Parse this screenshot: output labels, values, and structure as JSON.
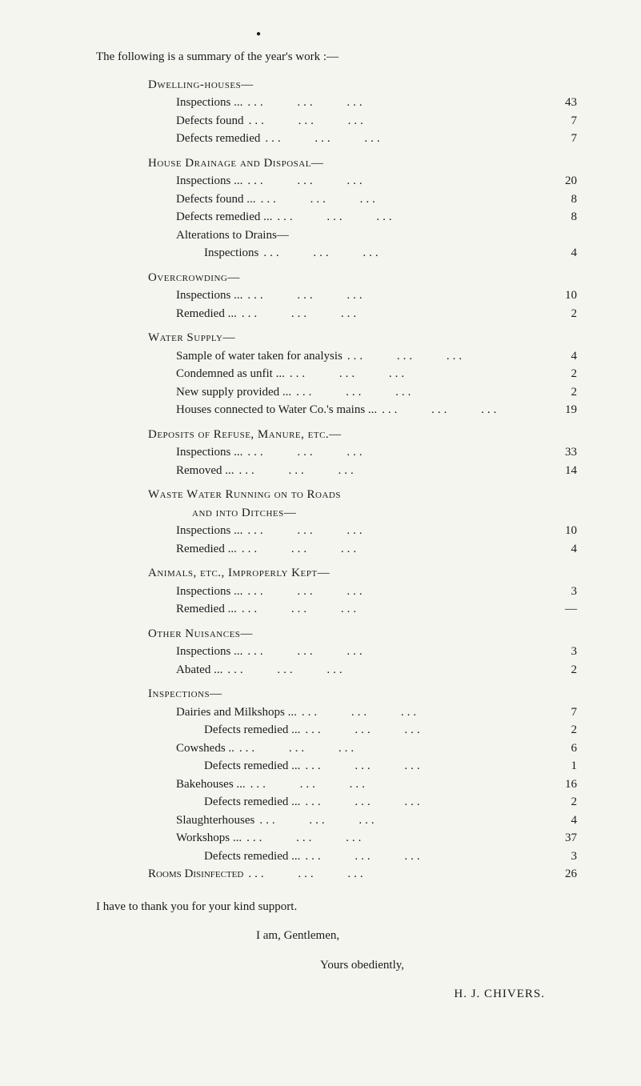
{
  "intro": "The following is a summary of the year's work :—",
  "sections": [
    {
      "heading": "Dwelling-houses—",
      "rows": [
        {
          "label": "Inspections   ...",
          "value": "43"
        },
        {
          "label": "Defects found",
          "value": "7"
        },
        {
          "label": "Defects remedied",
          "value": "7"
        }
      ]
    },
    {
      "heading": "House Drainage and Disposal—",
      "rows": [
        {
          "label": "Inspections   ...",
          "value": "20"
        },
        {
          "label": "Defects found     ...",
          "value": "8"
        },
        {
          "label": "Defects remedied ...",
          "value": "8"
        }
      ],
      "subheading": "Alterations to Drains—",
      "subrows": [
        {
          "label": "Inspections",
          "value": "4"
        }
      ]
    },
    {
      "heading": "Overcrowding—",
      "rows": [
        {
          "label": "Inspections   ...",
          "value": "10"
        },
        {
          "label": "Remedied      ...",
          "value": "2"
        }
      ]
    },
    {
      "heading": "Water Supply—",
      "rows": [
        {
          "label": "Sample of water taken for analysis",
          "value": "4"
        },
        {
          "label": "Condemned as unfit    ...",
          "value": "2"
        },
        {
          "label": "New supply provided ...",
          "value": "2"
        },
        {
          "label": "Houses connected to Water Co.'s mains ...",
          "value": "19"
        }
      ]
    },
    {
      "heading": "Deposits of Refuse, Manure, etc.—",
      "rows": [
        {
          "label": "Inspections   ...",
          "value": "33"
        },
        {
          "label": "Removed       ...",
          "value": "14"
        }
      ]
    },
    {
      "heading": "Waste Water Running on to Roads",
      "heading2": "and into Ditches—",
      "rows": [
        {
          "label": "Inspections   ...",
          "value": "10"
        },
        {
          "label": "Remedied      ...",
          "value": "4"
        }
      ]
    },
    {
      "heading": "Animals, etc., Improperly Kept—",
      "rows": [
        {
          "label": "Inspections   ...",
          "value": "3"
        },
        {
          "label": "Remedied      ...",
          "value": "—"
        }
      ]
    },
    {
      "heading": "Other Nuisances—",
      "rows": [
        {
          "label": "Inspections   ...",
          "value": "3"
        },
        {
          "label": "Abated           ...",
          "value": "2"
        }
      ]
    },
    {
      "heading": "Inspections—",
      "rows": [
        {
          "label": "Dairies and Milkshops ...",
          "value": "7"
        },
        {
          "label": "Defects remedied ...",
          "value": "2",
          "sub": true
        },
        {
          "label": "Cowsheds     ..",
          "value": "6"
        },
        {
          "label": "Defects remedied ...",
          "value": "1",
          "sub": true
        },
        {
          "label": "Bakehouses   ...",
          "value": "16"
        },
        {
          "label": "Defects remedied ...",
          "value": "2",
          "sub": true
        },
        {
          "label": "Slaughterhouses",
          "value": "4"
        },
        {
          "label": "Workshops   ...",
          "value": "37"
        },
        {
          "label": "Defects remedied ...",
          "value": "3",
          "sub": true
        }
      ]
    },
    {
      "heading": "Rooms Disinfected",
      "inline_value": "26"
    }
  ],
  "closing1": "I have to thank you for your kind support.",
  "closing2": "I am, Gentlemen,",
  "closing3": "Yours obediently,",
  "signature": "H. J. CHIVERS."
}
